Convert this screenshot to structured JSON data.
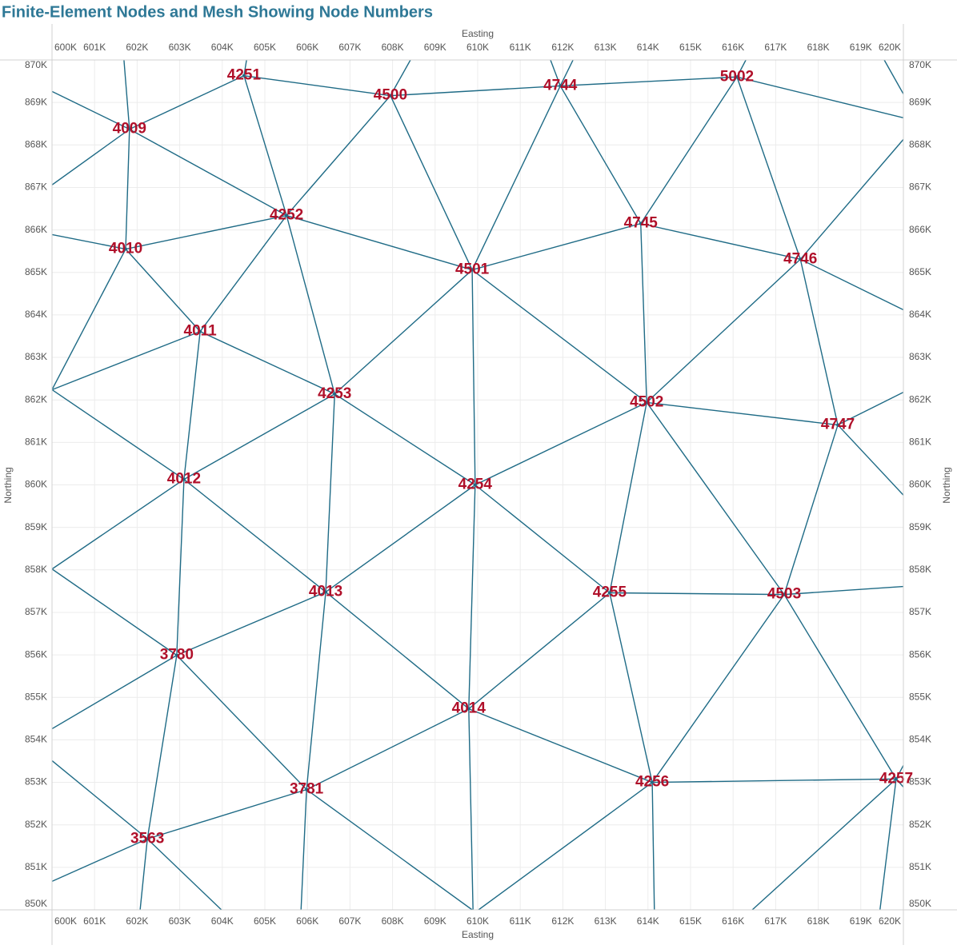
{
  "chart_data": {
    "type": "mesh",
    "title": "Finite-Element Nodes and Mesh Showing Node Numbers",
    "xlabel": "Easting",
    "ylabel": "Northing",
    "line_color": "#1f6b86",
    "label_color": "#b0102a",
    "grid": true,
    "xlim": [
      600000,
      620000
    ],
    "ylim": [
      850000,
      870000
    ],
    "xticks": [
      {
        "value": 600000,
        "label": "600K"
      },
      {
        "value": 601000,
        "label": "601K"
      },
      {
        "value": 602000,
        "label": "602K"
      },
      {
        "value": 603000,
        "label": "603K"
      },
      {
        "value": 604000,
        "label": "604K"
      },
      {
        "value": 605000,
        "label": "605K"
      },
      {
        "value": 606000,
        "label": "606K"
      },
      {
        "value": 607000,
        "label": "607K"
      },
      {
        "value": 608000,
        "label": "608K"
      },
      {
        "value": 609000,
        "label": "609K"
      },
      {
        "value": 610000,
        "label": "610K"
      },
      {
        "value": 611000,
        "label": "611K"
      },
      {
        "value": 612000,
        "label": "612K"
      },
      {
        "value": 613000,
        "label": "613K"
      },
      {
        "value": 614000,
        "label": "614K"
      },
      {
        "value": 615000,
        "label": "615K"
      },
      {
        "value": 616000,
        "label": "616K"
      },
      {
        "value": 617000,
        "label": "617K"
      },
      {
        "value": 618000,
        "label": "618K"
      },
      {
        "value": 619000,
        "label": "619K"
      },
      {
        "value": 620000,
        "label": "620K"
      }
    ],
    "yticks": [
      {
        "value": 850000,
        "label": "850K"
      },
      {
        "value": 851000,
        "label": "851K"
      },
      {
        "value": 852000,
        "label": "852K"
      },
      {
        "value": 853000,
        "label": "853K"
      },
      {
        "value": 854000,
        "label": "854K"
      },
      {
        "value": 855000,
        "label": "855K"
      },
      {
        "value": 856000,
        "label": "856K"
      },
      {
        "value": 857000,
        "label": "857K"
      },
      {
        "value": 858000,
        "label": "858K"
      },
      {
        "value": 859000,
        "label": "859K"
      },
      {
        "value": 860000,
        "label": "860K"
      },
      {
        "value": 861000,
        "label": "861K"
      },
      {
        "value": 862000,
        "label": "862K"
      },
      {
        "value": 863000,
        "label": "863K"
      },
      {
        "value": 864000,
        "label": "864K"
      },
      {
        "value": 865000,
        "label": "865K"
      },
      {
        "value": 866000,
        "label": "866K"
      },
      {
        "value": 867000,
        "label": "867K"
      },
      {
        "value": 868000,
        "label": "868K"
      },
      {
        "value": 869000,
        "label": "869K"
      },
      {
        "value": 870000,
        "label": "870K"
      }
    ],
    "nodes": {
      "labels": [
        "4251",
        "4500",
        "4744",
        "5002",
        "4009",
        "4252",
        "4010",
        "4501",
        "4745",
        "4746",
        "4011",
        "4253",
        "4502",
        "4747",
        "4012",
        "4254",
        "4013",
        "4255",
        "4503",
        "3780",
        "4014",
        "3781",
        "4256",
        "4257",
        "3563"
      ],
      "x": [
        604510,
        607950,
        611940,
        616090,
        601820,
        605510,
        601730,
        609870,
        613830,
        617580,
        603480,
        606640,
        613970,
        618460,
        603100,
        609940,
        606430,
        613100,
        617200,
        602930,
        609790,
        605980,
        614100,
        619830,
        602240
      ],
      "y": [
        869630,
        869160,
        869390,
        869600,
        868370,
        866340,
        865550,
        865060,
        866150,
        865310,
        863610,
        862140,
        861940,
        861410,
        860130,
        860000,
        857480,
        857460,
        857420,
        855990,
        854730,
        852830,
        853000,
        853080,
        851670
      ]
    },
    "segments": [
      [
        604510,
        869630,
        607950,
        869160
      ],
      [
        607950,
        869160,
        611940,
        869390
      ],
      [
        611940,
        869390,
        616090,
        869600
      ],
      [
        601820,
        868370,
        604510,
        869630
      ],
      [
        601820,
        868370,
        605510,
        866340
      ],
      [
        601820,
        868370,
        601730,
        865550
      ],
      [
        604510,
        869630,
        605510,
        866340
      ],
      [
        607950,
        869160,
        605510,
        866340
      ],
      [
        607950,
        869160,
        609870,
        865060
      ],
      [
        611940,
        869390,
        609870,
        865060
      ],
      [
        611940,
        869390,
        613830,
        866150
      ],
      [
        616090,
        869600,
        613830,
        866150
      ],
      [
        616090,
        869600,
        617580,
        865310
      ],
      [
        601730,
        865550,
        605510,
        866340
      ],
      [
        601730,
        865550,
        603480,
        863610
      ],
      [
        605510,
        866340,
        603480,
        863610
      ],
      [
        605510,
        866340,
        606640,
        862140
      ],
      [
        605510,
        866340,
        609870,
        865060
      ],
      [
        609870,
        865060,
        613830,
        866150
      ],
      [
        613830,
        866150,
        617580,
        865310
      ],
      [
        613830,
        866150,
        613970,
        861940
      ],
      [
        617580,
        865310,
        613970,
        861940
      ],
      [
        617580,
        865310,
        618460,
        861410
      ],
      [
        609870,
        865060,
        606640,
        862140
      ],
      [
        609870,
        865060,
        613970,
        861940
      ],
      [
        609870,
        865060,
        609940,
        860000
      ],
      [
        603480,
        863610,
        606640,
        862140
      ],
      [
        603480,
        863610,
        603100,
        860130
      ],
      [
        606640,
        862140,
        603100,
        860130
      ],
      [
        606640,
        862140,
        606430,
        857480
      ],
      [
        606640,
        862140,
        609940,
        860000
      ],
      [
        613970,
        861940,
        609940,
        860000
      ],
      [
        613970,
        861940,
        618460,
        861410
      ],
      [
        613970,
        861940,
        613100,
        857460
      ],
      [
        613970,
        861940,
        617200,
        857420
      ],
      [
        618460,
        861410,
        617200,
        857420
      ],
      [
        603100,
        860130,
        606430,
        857480
      ],
      [
        603100,
        860130,
        602930,
        855990
      ],
      [
        609940,
        860000,
        606430,
        857480
      ],
      [
        609940,
        860000,
        613100,
        857460
      ],
      [
        609940,
        860000,
        609790,
        854730
      ],
      [
        613100,
        857460,
        617200,
        857420
      ],
      [
        613100,
        857460,
        609790,
        854730
      ],
      [
        613100,
        857460,
        614100,
        853000
      ],
      [
        617200,
        857420,
        614100,
        853000
      ],
      [
        617200,
        857420,
        619830,
        853080
      ],
      [
        606430,
        857480,
        602930,
        855990
      ],
      [
        606430,
        857480,
        609790,
        854730
      ],
      [
        606430,
        857480,
        605980,
        852830
      ],
      [
        602930,
        855990,
        605980,
        852830
      ],
      [
        602930,
        855990,
        602240,
        851670
      ],
      [
        609790,
        854730,
        605980,
        852830
      ],
      [
        609790,
        854730,
        614100,
        853000
      ],
      [
        614100,
        853000,
        619830,
        853080
      ],
      [
        605980,
        852830,
        602240,
        851670
      ],
      [
        601820,
        868370,
        601690,
        870000
      ],
      [
        601820,
        868370,
        600000,
        869260
      ],
      [
        601820,
        868370,
        600000,
        867060
      ],
      [
        604510,
        869630,
        604570,
        870000
      ],
      [
        607950,
        869160,
        608420,
        870000
      ],
      [
        611940,
        869390,
        612240,
        870000
      ],
      [
        611940,
        869390,
        611710,
        870000
      ],
      [
        616090,
        869600,
        616300,
        870000
      ],
      [
        616090,
        869600,
        620000,
        868640
      ],
      [
        601730,
        865550,
        600000,
        865890
      ],
      [
        601730,
        865550,
        600000,
        862240
      ],
      [
        619550,
        870000,
        620000,
        869200
      ],
      [
        617580,
        865310,
        620000,
        868130
      ],
      [
        617580,
        865310,
        620000,
        864120
      ],
      [
        603480,
        863610,
        600000,
        862240
      ],
      [
        600000,
        862240,
        603100,
        860130
      ],
      [
        618460,
        861410,
        620000,
        862180
      ],
      [
        618460,
        861410,
        620000,
        859760
      ],
      [
        600000,
        858020,
        603100,
        860130
      ],
      [
        600000,
        858020,
        602930,
        855990
      ],
      [
        602930,
        855990,
        600000,
        854260
      ],
      [
        617200,
        857420,
        620000,
        857610
      ],
      [
        619830,
        853080,
        620000,
        853400
      ],
      [
        619830,
        853080,
        620000,
        852890
      ],
      [
        602240,
        851670,
        600000,
        853510
      ],
      [
        602240,
        851670,
        600000,
        850670
      ],
      [
        602240,
        851670,
        602070,
        850000
      ],
      [
        602240,
        851670,
        603980,
        850000
      ],
      [
        605980,
        852830,
        605850,
        850000
      ],
      [
        605980,
        852830,
        609870,
        850000
      ],
      [
        609790,
        854730,
        609890,
        850000
      ],
      [
        614100,
        853000,
        610020,
        850000
      ],
      [
        614100,
        853000,
        614150,
        850000
      ],
      [
        619830,
        853080,
        616450,
        850000
      ],
      [
        619830,
        853080,
        619450,
        850000
      ]
    ]
  }
}
